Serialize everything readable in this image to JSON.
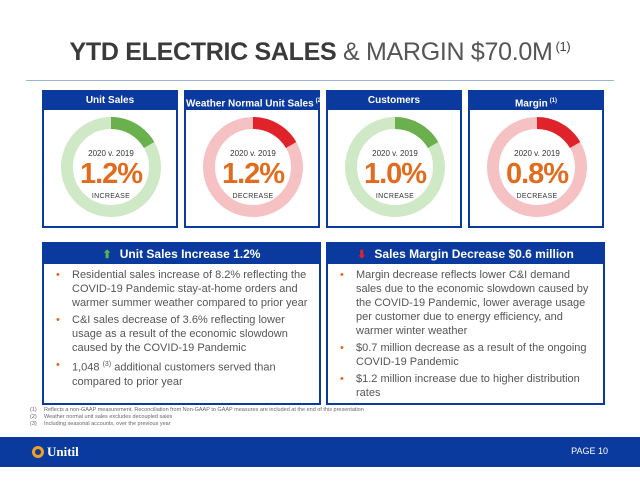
{
  "title": {
    "bold": "YTD ELECTRIC SALES",
    "rest": "& MARGIN $70.0M",
    "footnote_ref": "(1)"
  },
  "metrics": [
    {
      "heading": "Unit Sales",
      "heading_ref": "",
      "comparison": "2020 v. 2019",
      "value": "1.2%",
      "direction": "INCREASE",
      "gauge_color": "#6ab04c",
      "gauge_bg": "#cfe8c5"
    },
    {
      "heading": "Weather Normal Unit Sales",
      "heading_ref": "(2)",
      "comparison": "2020 v. 2019",
      "value": "1.2%",
      "direction": "DECREASE",
      "gauge_color": "#e0232b",
      "gauge_bg": "#f6c1c3"
    },
    {
      "heading": "Customers",
      "heading_ref": "",
      "comparison": "2020 v. 2019",
      "value": "1.0%",
      "direction": "INCREASE",
      "gauge_color": "#6ab04c",
      "gauge_bg": "#cfe8c5"
    },
    {
      "heading": "Margin",
      "heading_ref": "(1)",
      "comparison": "2020 v. 2019",
      "value": "0.8%",
      "direction": "DECREASE",
      "gauge_color": "#e0232b",
      "gauge_bg": "#f6c1c3"
    }
  ],
  "left_panel": {
    "heading": "Unit Sales Increase 1.2%",
    "arrow_icon": "up-arrow-icon",
    "bullets": [
      {
        "text": "Residential sales increase of 8.2% reflecting the COVID-19 Pandemic stay-at-home orders and warmer summer weather compared to prior year"
      },
      {
        "text": "C&I sales decrease of 3.6% reflecting lower usage as a result of the economic slowdown caused by the COVID-19 Pandemic"
      },
      {
        "pre": "1,048",
        "ref": "(3)",
        "post": "additional customers served than compared to prior year"
      }
    ]
  },
  "right_panel": {
    "heading": "Sales Margin Decrease $0.6 million",
    "arrow_icon": "down-arrow-icon",
    "bullets": [
      "Margin decrease reflects lower C&I demand sales due to the economic slowdown caused by the COVID-19 Pandemic, lower average usage per customer due to energy efficiency, and warmer winter weather",
      "$0.7 million decrease as a result of the ongoing COVID-19 Pandemic",
      "$1.2 million increase due to higher distribution rates"
    ]
  },
  "footnotes": [
    {
      "num": "(1)",
      "text": "Reflects a non-GAAP measurement. Reconciliation from Non-GAAP to GAAP measures are included at the end of this presentation"
    },
    {
      "num": "(2)",
      "text": "Weather normal unit sales excludes decoupled sales"
    },
    {
      "num": "(3)",
      "text": "Including seasonal accounts, over the previous year"
    }
  ],
  "footer": {
    "logo_text": "Unitil",
    "page": "PAGE 10"
  },
  "colors": {
    "brand_blue": "#0b3a9e",
    "value_orange": "#e36b1d",
    "increase_green": "#6ab04c",
    "decrease_red": "#e0232b"
  }
}
